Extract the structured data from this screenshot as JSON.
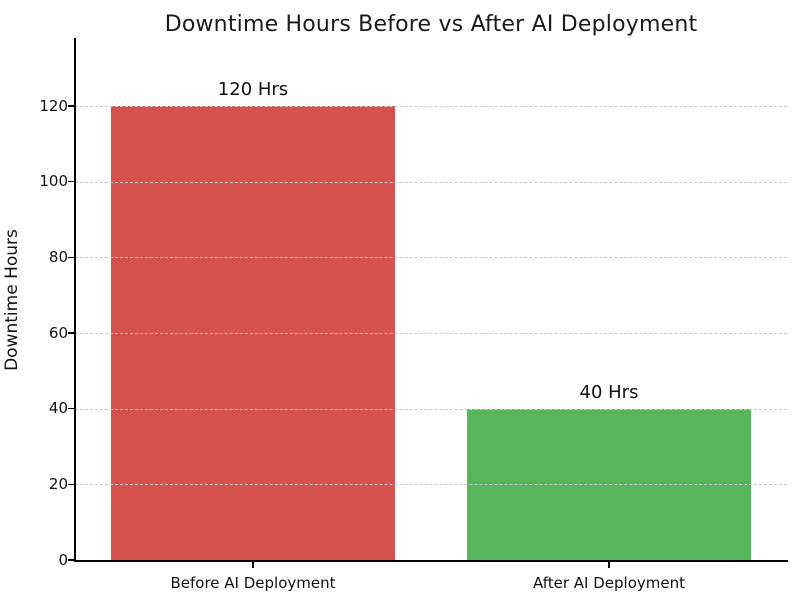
{
  "chart_data": {
    "type": "bar",
    "title": "Downtime Hours Before vs After AI Deployment",
    "xlabel": "",
    "ylabel": "Downtime Hours",
    "categories": [
      "Before AI Deployment",
      "After AI Deployment"
    ],
    "values": [
      120,
      40
    ],
    "bar_value_labels": [
      "120 Hrs",
      "40 Hrs"
    ],
    "bar_colors": [
      "#d5524f",
      "#57b65c"
    ],
    "ylim": [
      0,
      138
    ],
    "yticks": [
      0,
      20,
      40,
      60,
      80,
      100,
      120
    ],
    "grid": "horizontal-dashed-over-bars",
    "gridline_color": "#c9c9c9",
    "legend": "none",
    "background_color": "#ffffff",
    "spines": [
      "left",
      "bottom"
    ]
  }
}
